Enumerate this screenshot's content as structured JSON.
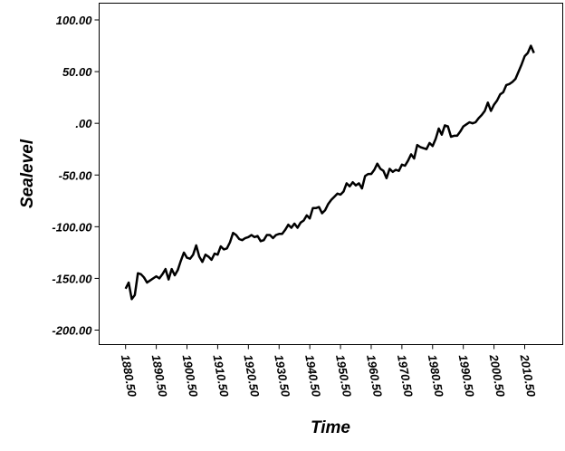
{
  "chart_data": {
    "type": "line",
    "title": "",
    "xlabel": "Time",
    "ylabel": "Sealevel",
    "xlim": [
      1880.5,
      2013.5
    ],
    "ylim": [
      -200,
      100
    ],
    "xticks": [
      1880.5,
      1890.5,
      1900.5,
      1910.5,
      1920.5,
      1930.5,
      1940.5,
      1950.5,
      1960.5,
      1970.5,
      1980.5,
      1990.5,
      2000.5,
      2010.5
    ],
    "xtick_labels": [
      "1880.50",
      "1890.50",
      "1900.50",
      "1910.50",
      "1920.50",
      "1930.50",
      "1940.50",
      "1950.50",
      "1960.50",
      "1970.50",
      "1980.50",
      "1990.50",
      "2000.50",
      "2010.50"
    ],
    "yticks": [
      100,
      50,
      0,
      -50,
      -100,
      -150,
      -200
    ],
    "ytick_labels": [
      "100.00",
      "50.00",
      ".00",
      "-50.00",
      "-100.00",
      "-150.00",
      "-200.00"
    ],
    "grid": false,
    "legend": "none",
    "line_color": "#000000",
    "series": [
      {
        "x": [
          1880.5,
          1881.5,
          1882.5,
          1883.5,
          1884.5,
          1885.5,
          1886.5,
          1887.5,
          1888.5,
          1889.5,
          1890.5,
          1891.5,
          1892.5,
          1893.5,
          1894.5,
          1895.5,
          1896.5,
          1897.5,
          1898.5,
          1899.5,
          1900.5,
          1901.5,
          1902.5,
          1903.5,
          1904.5,
          1905.5,
          1906.5,
          1907.5,
          1908.5,
          1909.5,
          1910.5,
          1911.5,
          1912.5,
          1913.5,
          1914.5,
          1915.5,
          1916.5,
          1917.5,
          1918.5,
          1919.5,
          1920.5,
          1921.5,
          1922.5,
          1923.5,
          1924.5,
          1925.5,
          1926.5,
          1927.5,
          1928.5,
          1929.5,
          1930.5,
          1931.5,
          1932.5,
          1933.5,
          1934.5,
          1935.5,
          1936.5,
          1937.5,
          1938.5,
          1939.5,
          1940.5,
          1941.5,
          1942.5,
          1943.5,
          1944.5,
          1945.5,
          1946.5,
          1947.5,
          1948.5,
          1949.5,
          1950.5,
          1951.5,
          1952.5,
          1953.5,
          1954.5,
          1955.5,
          1956.5,
          1957.5,
          1958.5,
          1959.5,
          1960.5,
          1961.5,
          1962.5,
          1963.5,
          1964.5,
          1965.5,
          1966.5,
          1967.5,
          1968.5,
          1969.5,
          1970.5,
          1971.5,
          1972.5,
          1973.5,
          1974.5,
          1975.5,
          1976.5,
          1977.5,
          1978.5,
          1979.5,
          1980.5,
          1981.5,
          1982.5,
          1983.5,
          1984.5,
          1985.5,
          1986.5,
          1987.5,
          1988.5,
          1989.5,
          1990.5,
          1991.5,
          1992.5,
          1993.5,
          1994.5,
          1995.5,
          1996.5,
          1997.5,
          1998.5,
          1999.5,
          2000.5,
          2001.5,
          2002.5,
          2003.5,
          2004.5,
          2005.5,
          2006.5,
          2007.5,
          2008.5,
          2009.5,
          2010.5,
          2011.5,
          2012.5,
          2013.5
        ],
        "values": [
          -160,
          -154,
          -170,
          -166,
          -145,
          -146,
          -149,
          -154,
          -152,
          -150,
          -148,
          -150,
          -146,
          -141,
          -151,
          -141,
          -147,
          -142,
          -133,
          -125,
          -130,
          -131,
          -127,
          -118,
          -129,
          -134,
          -127,
          -129,
          -132,
          -126,
          -127,
          -119,
          -122,
          -121,
          -115,
          -106,
          -108,
          -112,
          -113,
          -111,
          -110,
          -108,
          -110,
          -109,
          -114,
          -113,
          -108,
          -108,
          -111,
          -108,
          -107,
          -107,
          -103,
          -98,
          -101,
          -97,
          -101,
          -96,
          -94,
          -89,
          -92,
          -82,
          -82,
          -81,
          -87,
          -84,
          -78,
          -74,
          -71,
          -68,
          -69,
          -66,
          -58,
          -61,
          -57,
          -60,
          -58,
          -63,
          -51,
          -49,
          -49,
          -45,
          -39,
          -44,
          -46,
          -53,
          -44,
          -47,
          -45,
          -46,
          -40,
          -41,
          -36,
          -30,
          -34,
          -21,
          -23,
          -24,
          -25,
          -19,
          -22,
          -15,
          -5,
          -11,
          -2,
          -3,
          -13,
          -12,
          -12,
          -8,
          -3,
          -1,
          1,
          0,
          1,
          5,
          8,
          12,
          20,
          12,
          18,
          22,
          28,
          30,
          37,
          38,
          40,
          43,
          50,
          57,
          65,
          68,
          75,
          68
        ]
      }
    ]
  }
}
